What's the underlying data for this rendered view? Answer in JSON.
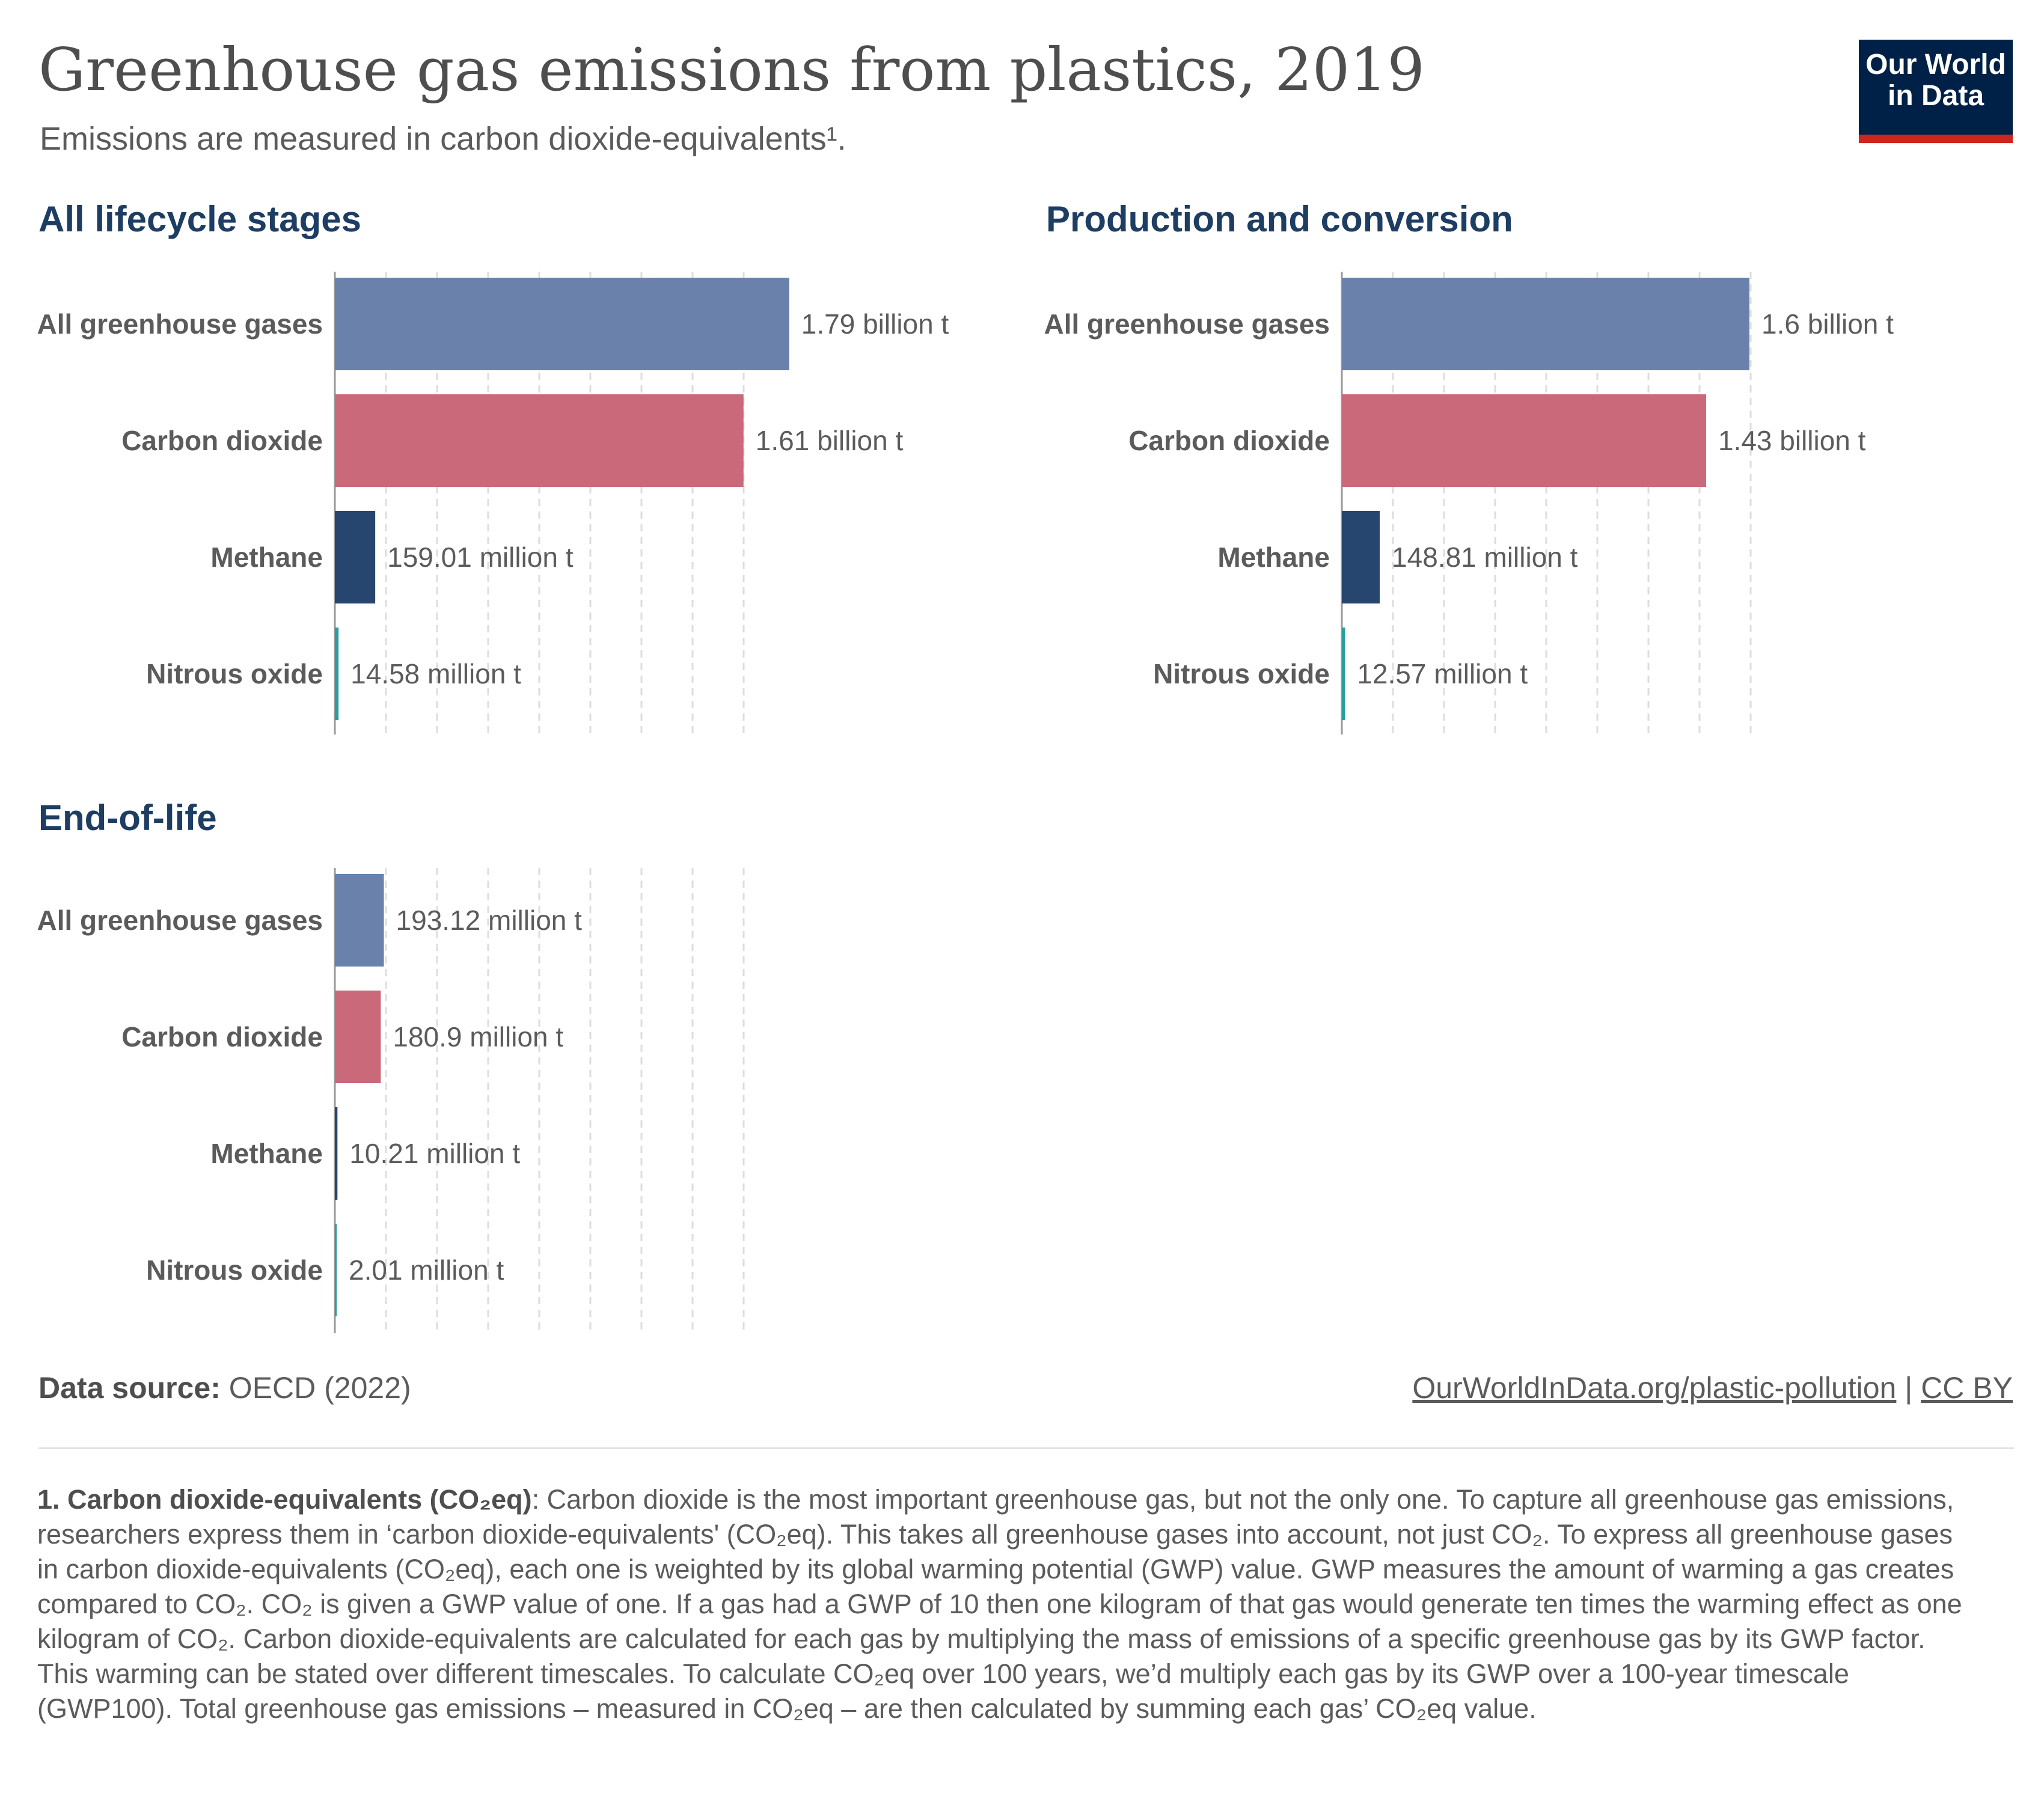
{
  "header": {
    "title": "Greenhouse gas emissions from plastics, 2019",
    "subtitle": "Emissions are measured in carbon dioxide-equivalents¹.",
    "logo_line1": "Our World",
    "logo_line2": "in Data"
  },
  "colors": {
    "all_greenhouse_gases": "#6981ab",
    "carbon_dioxide": "#c9697a",
    "methane": "#27466f",
    "nitrous_oxide": "#2a9e9e",
    "panel_title": "#1d3d63"
  },
  "chart_data": [
    {
      "type": "bar",
      "orientation": "horizontal",
      "title": "All lifecycle stages",
      "categories": [
        "All greenhouse gases",
        "Carbon dioxide",
        "Methane",
        "Nitrous oxide"
      ],
      "values": [
        1790000000,
        1610000000,
        159010000,
        14580000
      ],
      "value_labels": [
        "1.79 billion t",
        "1.61 billion t",
        "159.01 million t",
        "14.58 million t"
      ],
      "unit": "t",
      "xlim": [
        0,
        1800000000
      ],
      "grid": true
    },
    {
      "type": "bar",
      "orientation": "horizontal",
      "title": "Production and conversion",
      "categories": [
        "All greenhouse gases",
        "Carbon dioxide",
        "Methane",
        "Nitrous oxide"
      ],
      "values": [
        1600000000,
        1430000000,
        148810000,
        12570000
      ],
      "value_labels": [
        "1.6 billion t",
        "1.43 billion t",
        "148.81 million t",
        "12.57 million t"
      ],
      "unit": "t",
      "xlim": [
        0,
        1600000000
      ],
      "grid": true
    },
    {
      "type": "bar",
      "orientation": "horizontal",
      "title": "End-of-life",
      "categories": [
        "All greenhouse gases",
        "Carbon dioxide",
        "Methane",
        "Nitrous oxide"
      ],
      "values": [
        193120000,
        180900000,
        10210000,
        2010000
      ],
      "value_labels": [
        "193.12 million t",
        "180.9 million t",
        "10.21 million t",
        "2.01 million t"
      ],
      "unit": "t",
      "xlim": [
        0,
        1800000000
      ],
      "grid": true
    }
  ],
  "footer": {
    "source_label": "Data source:",
    "source_value": "OECD (2022)",
    "link": "OurWorldInData.org/plastic-pollution",
    "separator": "|",
    "license": "CC BY"
  },
  "footnote": {
    "term": "1. Carbon dioxide-equivalents (CO₂eq)",
    "text": ": Carbon dioxide is the most important greenhouse gas, but not the only one. To capture all greenhouse gas emissions, researchers express them in ‘carbon dioxide-equivalents' (CO₂eq). This takes all greenhouse gases into account, not just CO₂. To express all greenhouse gases in carbon dioxide-equivalents (CO₂eq), each one is weighted by its global warming potential (GWP) value. GWP measures the amount of warming a gas creates compared to CO₂. CO₂ is given a GWP value of one. If a gas had a GWP of 10 then one kilogram of that gas would generate ten times the warming effect as one kilogram of CO₂. Carbon dioxide-equivalents are calculated for each gas by multiplying the mass of emissions of a specific greenhouse gas by its GWP factor. This warming can be stated over different timescales. To calculate CO₂eq over 100 years, we’d multiply each gas by its GWP over a 100-year timescale (GWP100). Total greenhouse gas emissions – measured in CO₂eq – are then calculated by summing each gas’ CO₂eq value."
  }
}
